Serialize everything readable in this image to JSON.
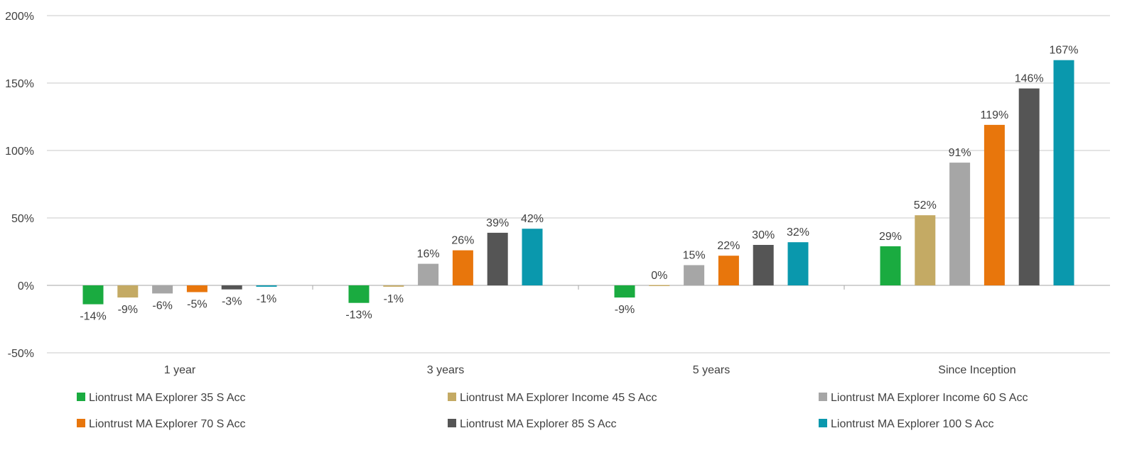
{
  "chart_data": {
    "type": "bar",
    "categories": [
      "1 year",
      "3 years",
      "5 years",
      "Since Inception"
    ],
    "series": [
      {
        "name": "Liontrust MA Explorer 35 S Acc",
        "color": "#1aab40",
        "values": [
          -14,
          -13,
          -9,
          29
        ],
        "labels": [
          "-14%",
          "-13%",
          "-9%",
          "29%"
        ]
      },
      {
        "name": "Liontrust MA Explorer Income 45 S Acc",
        "color": "#c4aa64",
        "values": [
          -9,
          -1,
          0,
          52
        ],
        "labels": [
          "-9%",
          "-1%",
          "0%",
          "52%"
        ]
      },
      {
        "name": "Liontrust MA Explorer Income 60 S Acc",
        "color": "#a6a6a6",
        "values": [
          -6,
          16,
          15,
          91
        ],
        "labels": [
          "-6%",
          "16%",
          "15%",
          "91%"
        ]
      },
      {
        "name": "Liontrust MA Explorer 70 S Acc",
        "color": "#e8760c",
        "values": [
          -5,
          26,
          22,
          119
        ],
        "labels": [
          "-5%",
          "26%",
          "22%",
          "119%"
        ]
      },
      {
        "name": "Liontrust MA Explorer 85 S Acc",
        "color": "#555555",
        "values": [
          -3,
          39,
          30,
          146
        ],
        "labels": [
          "-3%",
          "39%",
          "30%",
          "146%"
        ]
      },
      {
        "name": "Liontrust MA Explorer 100 S Acc",
        "color": "#0a98ad",
        "values": [
          -1,
          42,
          32,
          167
        ],
        "labels": [
          "-1%",
          "42%",
          "32%",
          "167%"
        ]
      }
    ],
    "y_ticks": [
      "200%",
      "150%",
      "100%",
      "50%",
      "0%",
      "-50%"
    ],
    "y_tick_values": [
      200,
      150,
      100,
      50,
      0,
      -50
    ],
    "ylim": [
      -50,
      200
    ],
    "grid": true,
    "legend_position": "bottom",
    "title": "",
    "xlabel": "",
    "ylabel": ""
  }
}
